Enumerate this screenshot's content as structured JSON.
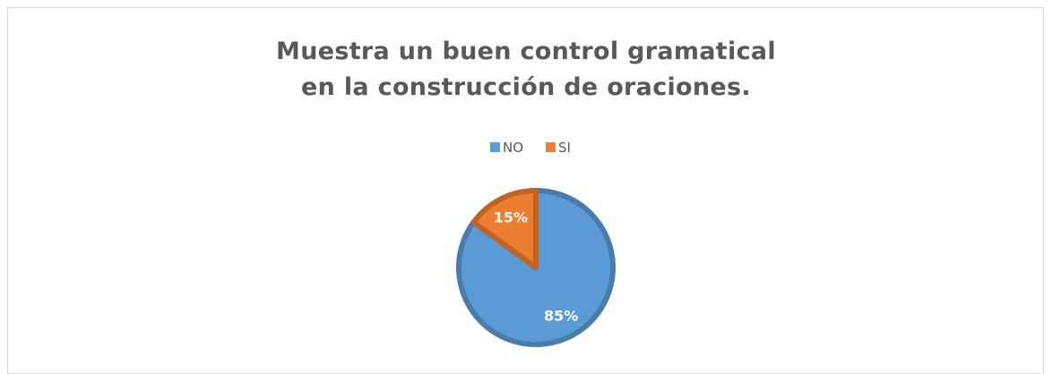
{
  "chart_data": {
    "type": "pie",
    "title": "Muestra un buen control gramatical en la construcción de oraciones.",
    "categories": [
      "NO",
      "SI"
    ],
    "values": [
      85,
      15
    ],
    "value_labels": [
      "85%",
      "15%"
    ],
    "colors": [
      "#5b9bd5",
      "#ed7d31"
    ],
    "legend": "top"
  }
}
